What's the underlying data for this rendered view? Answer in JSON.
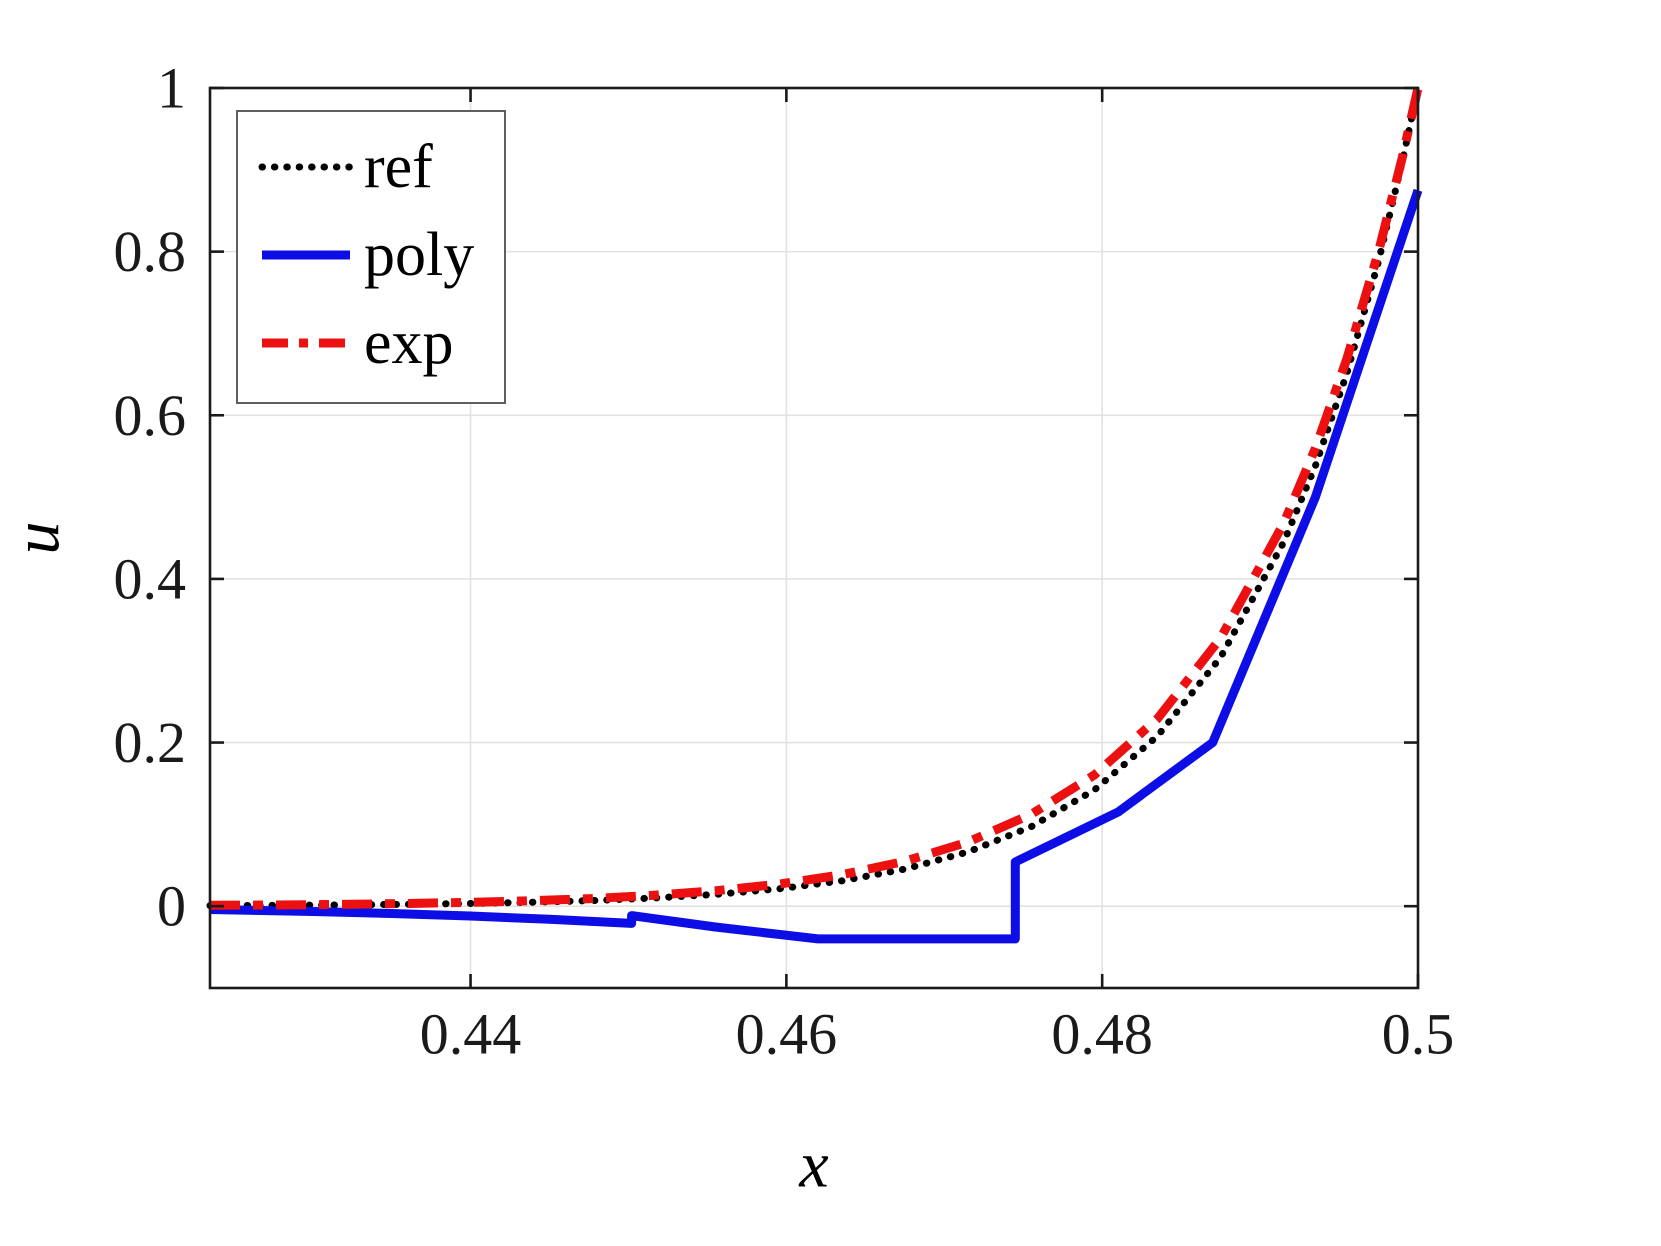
{
  "figure": {
    "background": "#ffffff",
    "box_color": "#1a1a1a",
    "grid_color": "#e2e2e2",
    "tick_label_color": "#1a1a1a"
  },
  "chart_data": {
    "type": "line",
    "title": "",
    "xlabel": "x",
    "ylabel": "u",
    "xlim": [
      0.4235,
      0.5
    ],
    "ylim": [
      -0.1,
      1.0
    ],
    "grid": true,
    "legend_position": "top-left",
    "x_ticks": {
      "values": [
        0.44,
        0.46,
        0.48,
        0.5
      ],
      "labels": [
        "0.44",
        "0.46",
        "0.48",
        "0.5"
      ]
    },
    "y_ticks": {
      "values": [
        0,
        0.2,
        0.4,
        0.6,
        0.8,
        1
      ],
      "labels": [
        "0",
        "0.2",
        "0.4",
        "0.6",
        "0.8",
        "1"
      ]
    },
    "series": [
      {
        "name": "ref",
        "color": "#000000",
        "style": "dotted",
        "width": 7,
        "x": [
          0.4235,
          0.4275,
          0.4315,
          0.4355,
          0.4395,
          0.4435,
          0.4475,
          0.4515,
          0.4555,
          0.4595,
          0.4635,
          0.4675,
          0.4715,
          0.4755,
          0.4795,
          0.4835,
          0.4875,
          0.4915,
          0.4935,
          0.4955,
          0.4975,
          0.499,
          0.5
        ],
        "y": [
          0.0007,
          0.001,
          0.0015,
          0.0022,
          0.0032,
          0.0046,
          0.0067,
          0.0099,
          0.0144,
          0.0211,
          0.0309,
          0.0453,
          0.0663,
          0.097,
          0.142,
          0.2079,
          0.3042,
          0.4451,
          0.5383,
          0.6514,
          0.788,
          0.9093,
          1.0
        ]
      },
      {
        "name": "poly",
        "color": "#0d0de6",
        "style": "solid",
        "width": 9,
        "x": [
          0.4235,
          0.43,
          0.435,
          0.44,
          0.445,
          0.4502,
          0.4502,
          0.4555,
          0.462,
          0.4745,
          0.4745,
          0.481,
          0.487,
          0.4935,
          0.5
        ],
        "y": [
          -0.004,
          -0.0065,
          -0.009,
          -0.012,
          -0.016,
          -0.021,
          -0.0115,
          -0.0255,
          -0.04,
          -0.04,
          0.054,
          0.115,
          0.2,
          0.5,
          0.875
        ]
      },
      {
        "name": "exp",
        "color": "#ec1010",
        "style": "dash-dot",
        "width": 9,
        "x": [
          0.4235,
          0.4275,
          0.4315,
          0.4355,
          0.4395,
          0.4435,
          0.4475,
          0.4515,
          0.4555,
          0.4595,
          0.4635,
          0.4675,
          0.4715,
          0.4755,
          0.4795,
          0.4835,
          0.4875,
          0.4915,
          0.4935,
          0.4955,
          0.4975,
          0.499,
          0.5
        ],
        "y": [
          0.0011,
          0.0015,
          0.0022,
          0.0032,
          0.0045,
          0.0065,
          0.0092,
          0.0132,
          0.0188,
          0.0269,
          0.0384,
          0.0549,
          0.0785,
          0.1122,
          0.1603,
          0.2293,
          0.3276,
          0.4682,
          0.5597,
          0.6691,
          0.8,
          0.9146,
          1.0
        ]
      }
    ]
  }
}
